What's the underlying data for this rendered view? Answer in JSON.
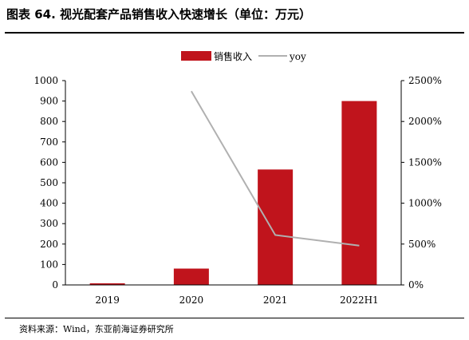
{
  "title": "图表 64. 视光配套产品销售收入快速增长（单位：万元）",
  "source": "资料来源：Wind，东亚前海证券研究所",
  "colors": {
    "bar": "#c0141c",
    "line": "#b0b0b0",
    "axis": "#000000"
  },
  "chart_data": {
    "type": "bar",
    "categories": [
      "2019",
      "2020",
      "2021",
      "2022H1"
    ],
    "series": [
      {
        "name": "销售收入",
        "type": "bar",
        "axis": "left",
        "values": [
          8,
          80,
          565,
          900
        ]
      },
      {
        "name": "yoy",
        "type": "line",
        "axis": "right",
        "values": [
          null,
          2370,
          610,
          480
        ]
      }
    ],
    "y_left": {
      "min": 0,
      "max": 1000,
      "ticks": [
        "0",
        "100",
        "200",
        "300",
        "400",
        "500",
        "600",
        "700",
        "800",
        "900",
        "1000"
      ]
    },
    "y_right": {
      "min": 0,
      "max": 2500,
      "ticks": [
        "0%",
        "500%",
        "1000%",
        "1500%",
        "2000%",
        "2500%"
      ]
    },
    "legend_position": "top-center",
    "grid": false
  }
}
